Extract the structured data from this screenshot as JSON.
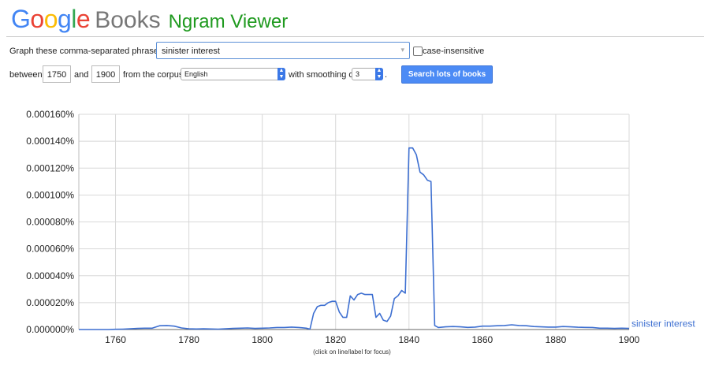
{
  "header": {
    "logo_letters": [
      {
        "ch": "G",
        "color": "#4285f4"
      },
      {
        "ch": "o",
        "color": "#ea4335"
      },
      {
        "ch": "o",
        "color": "#fbbc05"
      },
      {
        "ch": "g",
        "color": "#4285f4"
      },
      {
        "ch": "l",
        "color": "#34a853"
      },
      {
        "ch": "e",
        "color": "#ea4335"
      }
    ],
    "books_word": "Books",
    "title": "Ngram Viewer"
  },
  "controls": {
    "phrases_label": "Graph these comma-separated phrases:",
    "phrase_value": "sinister interest",
    "case_insensitive_label": "case-insensitive",
    "between_label": "between",
    "start_year": "1750",
    "and_label": "and",
    "end_year": "1900",
    "corpus_label": "from the corpus",
    "corpus_value": "English",
    "smoothing_label": "with smoothing of",
    "smoothing_value": "3",
    "search_button": "Search lots of books"
  },
  "footer_note": "(click on line/label for focus)",
  "chart_data": {
    "type": "line",
    "x_ticks": [
      "1760",
      "1780",
      "1800",
      "1820",
      "1840",
      "1860",
      "1880",
      "1900"
    ],
    "y_ticks": [
      "0.000000%",
      "0.000020%",
      "0.000040%",
      "0.000060%",
      "0.000080%",
      "0.000100%",
      "0.000120%",
      "0.000140%",
      "0.000160%"
    ],
    "xlim": [
      1750,
      1900
    ],
    "ylim": [
      0,
      0.00016
    ],
    "grid": true,
    "series": [
      {
        "name": "sinister interest",
        "color": "#3d6fd1",
        "x": [
          1750,
          1752,
          1754,
          1756,
          1758,
          1760,
          1762,
          1764,
          1766,
          1768,
          1770,
          1772,
          1774,
          1776,
          1778,
          1780,
          1782,
          1784,
          1786,
          1788,
          1790,
          1792,
          1794,
          1796,
          1798,
          1800,
          1802,
          1804,
          1806,
          1808,
          1810,
          1812,
          1813,
          1814,
          1815,
          1816,
          1817,
          1818,
          1819,
          1820,
          1821,
          1822,
          1823,
          1824,
          1825,
          1826,
          1827,
          1828,
          1829,
          1830,
          1831,
          1832,
          1833,
          1834,
          1835,
          1836,
          1837,
          1838,
          1839,
          1840,
          1841,
          1842,
          1843,
          1844,
          1845,
          1846,
          1847,
          1848,
          1850,
          1852,
          1854,
          1856,
          1858,
          1860,
          1862,
          1864,
          1866,
          1868,
          1870,
          1872,
          1874,
          1876,
          1878,
          1880,
          1882,
          1884,
          1886,
          1888,
          1890,
          1892,
          1894,
          1896,
          1898,
          1900
        ],
        "y": [
          0,
          0,
          0,
          0,
          0,
          2e-07,
          3e-07,
          5e-07,
          8e-07,
          1e-06,
          1e-06,
          2.8e-06,
          3e-06,
          2.5e-06,
          1.2e-06,
          5e-07,
          4e-07,
          5e-07,
          4e-07,
          3e-07,
          5e-07,
          8e-07,
          1e-06,
          1.2e-06,
          8e-07,
          1e-06,
          1.2e-06,
          1.5e-06,
          1.5e-06,
          1.8e-06,
          1.5e-06,
          1e-06,
          3e-07,
          1.2e-05,
          1.7e-05,
          1.8e-05,
          1.8e-05,
          2e-05,
          2.1e-05,
          2.1e-05,
          1.3e-05,
          9e-06,
          9e-06,
          2.5e-05,
          2.2e-05,
          2.6e-05,
          2.7e-05,
          2.6e-05,
          2.6e-05,
          2.6e-05,
          9e-06,
          1.2e-05,
          7e-06,
          6e-06,
          1e-05,
          2.3e-05,
          2.5e-05,
          2.9e-05,
          2.7e-05,
          0.000135,
          0.000135,
          0.00013,
          0.000117,
          0.000115,
          0.000111,
          0.00011,
          3e-06,
          1.5e-06,
          2e-06,
          2.2e-06,
          2e-06,
          1.6e-06,
          1.8e-06,
          2.5e-06,
          2.5e-06,
          2.8e-06,
          3e-06,
          3.5e-06,
          3e-06,
          2.8e-06,
          2.2e-06,
          2e-06,
          1.8e-06,
          1.8e-06,
          2.2e-06,
          2e-06,
          1.7e-06,
          1.6e-06,
          1.5e-06,
          1e-06,
          1e-06,
          8e-07,
          1e-06,
          8e-07
        ]
      }
    ]
  }
}
